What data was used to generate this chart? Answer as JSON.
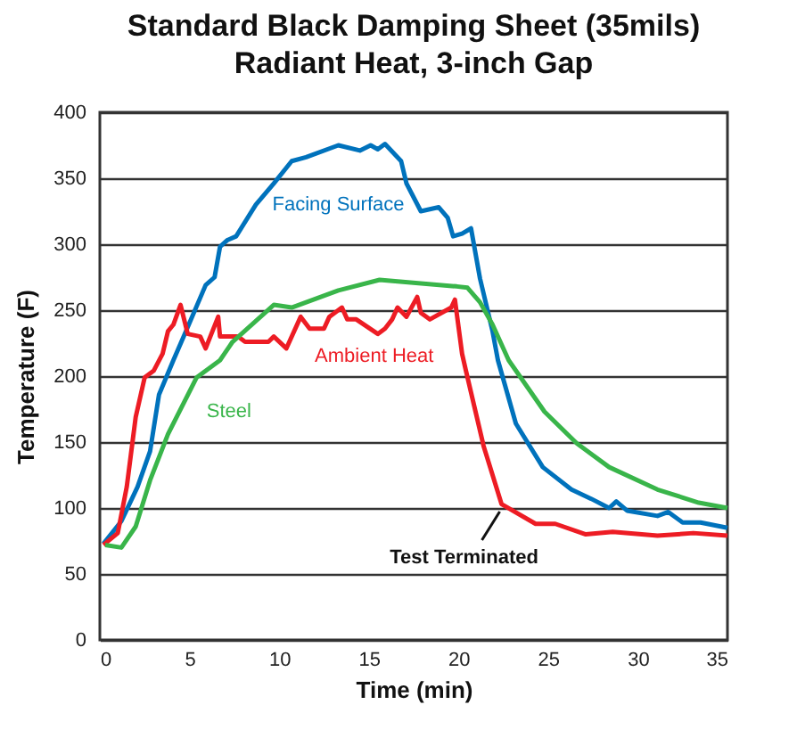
{
  "chart_data": {
    "type": "line",
    "title": "Standard Black Damping Sheet (35mils)",
    "subtitle": "Radiant Heat, 3-inch Gap",
    "xlabel": "Time (min)",
    "ylabel": "Temperature (F)",
    "xlim": [
      0,
      35
    ],
    "xticks": [
      0,
      5,
      10,
      15,
      20,
      25,
      30,
      35
    ],
    "ylim": [
      0,
      400
    ],
    "yticks": [
      0,
      50,
      100,
      150,
      200,
      250,
      300,
      350,
      400
    ],
    "grid": "y",
    "legend": false,
    "line_style": "solid",
    "marker": "none",
    "annotations": [
      {
        "text": "Test Terminated",
        "x": 22.5,
        "y": 100
      }
    ],
    "series": [
      {
        "name": "Facing Surface",
        "color": "#0072bc",
        "x": [
          0.2,
          1.2,
          2.1,
          2.8,
          3.3,
          4.1,
          4.8,
          5.9,
          6.4,
          6.7,
          7.1,
          7.6,
          8.7,
          9.7,
          10.7,
          11.5,
          13.3,
          14.5,
          15.1,
          15.5,
          15.9,
          16.8,
          17.1,
          17.9,
          18.9,
          19.4,
          19.7,
          20.2,
          20.7,
          21.2,
          21.9,
          22.2,
          23.2,
          24.7,
          26.3,
          27.4,
          28.4,
          28.8,
          29.4,
          31.1,
          31.7,
          32.5,
          33.5,
          35
        ],
        "values": [
          73,
          90,
          116,
          143,
          186,
          212,
          234,
          269,
          275,
          298,
          303,
          306,
          330,
          346,
          363,
          366,
          375,
          371,
          375,
          372,
          376,
          363,
          346,
          325,
          328,
          320,
          306,
          308,
          312,
          274,
          234,
          212,
          164,
          131,
          114,
          107,
          100,
          105,
          98,
          94,
          97,
          89,
          89,
          85
        ]
      },
      {
        "name": "Ambient Heat",
        "color": "#ed1c24",
        "x": [
          0.2,
          1.0,
          1.5,
          2.0,
          2.5,
          3.0,
          3.5,
          3.8,
          4.1,
          4.5,
          4.9,
          5.6,
          5.9,
          6.6,
          6.7,
          7.7,
          8.1,
          9.4,
          9.7,
          10.4,
          11.2,
          11.7,
          12.5,
          12.8,
          13.5,
          13.8,
          14.3,
          15.5,
          15.9,
          16.3,
          16.6,
          17.1,
          17.7,
          17.9,
          18.4,
          19.6,
          19.8,
          20.2,
          20.4,
          21.4,
          22.4,
          24.3,
          25.4,
          27.1,
          28.6,
          31.1,
          33.1,
          35
        ],
        "values": [
          72,
          81,
          116,
          169,
          199,
          204,
          217,
          234,
          239,
          254,
          232,
          230,
          221,
          245,
          230,
          230,
          226,
          226,
          230,
          221,
          245,
          236,
          236,
          245,
          252,
          243,
          243,
          232,
          236,
          243,
          252,
          245,
          260,
          248,
          243,
          252,
          258,
          217,
          205,
          147,
          103,
          88,
          88,
          80,
          82,
          79,
          81,
          79
        ]
      },
      {
        "name": "Steel",
        "color": "#39b54a",
        "x": [
          0.3,
          1.2,
          2.0,
          2.8,
          3.8,
          5.1,
          5.4,
          6.7,
          7.4,
          9.7,
          10.7,
          13.3,
          15.6,
          19.9,
          20.5,
          21.2,
          21.9,
          22.8,
          24.8,
          26.6,
          28.4,
          31.1,
          33.4,
          35
        ],
        "values": [
          72,
          70,
          86,
          121,
          156,
          191,
          199,
          212,
          226,
          254,
          252,
          265,
          273,
          268,
          267,
          256,
          239,
          212,
          173,
          149,
          131,
          114,
          104,
          100
        ]
      }
    ]
  }
}
